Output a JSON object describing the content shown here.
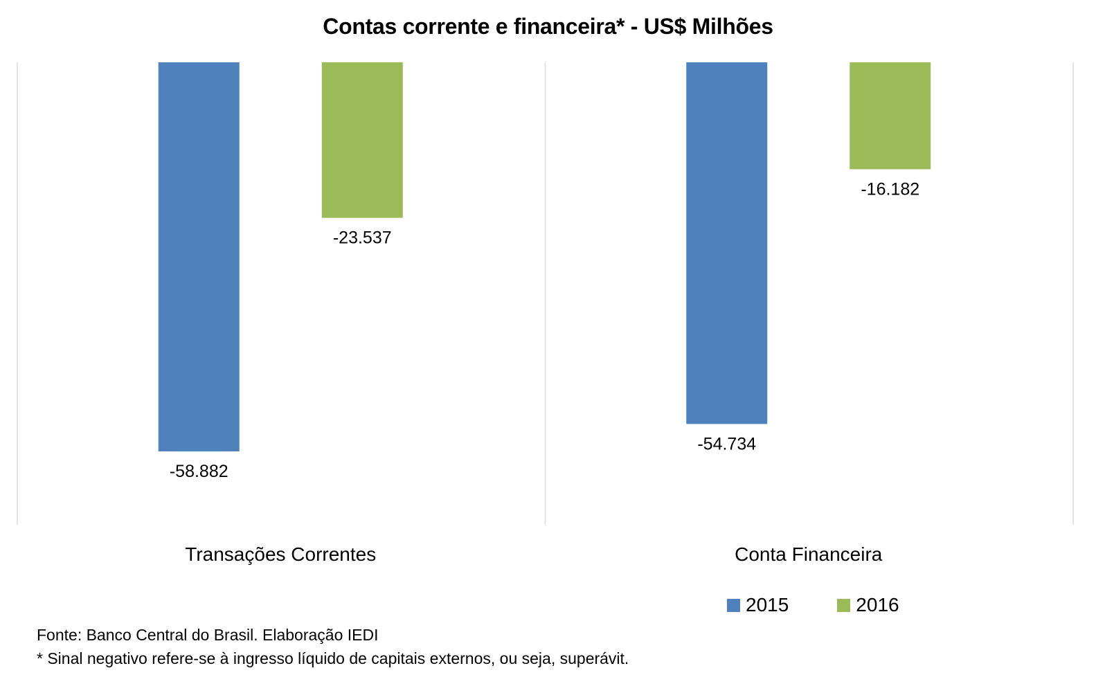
{
  "chart_data": {
    "type": "bar",
    "title": "Contas corrente e financeira* - US$ Milhões",
    "categories": [
      "Transações Correntes",
      "Conta Financeira"
    ],
    "series": [
      {
        "name": "2015",
        "color": "#4F81BD",
        "values": [
          -58882,
          -54734
        ],
        "labels": [
          "-58.882",
          "-54.734"
        ]
      },
      {
        "name": "2016",
        "color": "#9BBB59",
        "values": [
          -23537,
          -16182
        ],
        "labels": [
          "-23.537",
          "-16.182"
        ]
      }
    ],
    "ylim": [
      -70000,
      0
    ],
    "grid": false,
    "legend_position": "bottom-right"
  },
  "notes": {
    "source": "Fonte: Banco Central do Brasil. Elaboração IEDI",
    "footnote": "* Sinal negativo refere-se à ingresso líquido de capitais externos, ou seja, superávit."
  }
}
